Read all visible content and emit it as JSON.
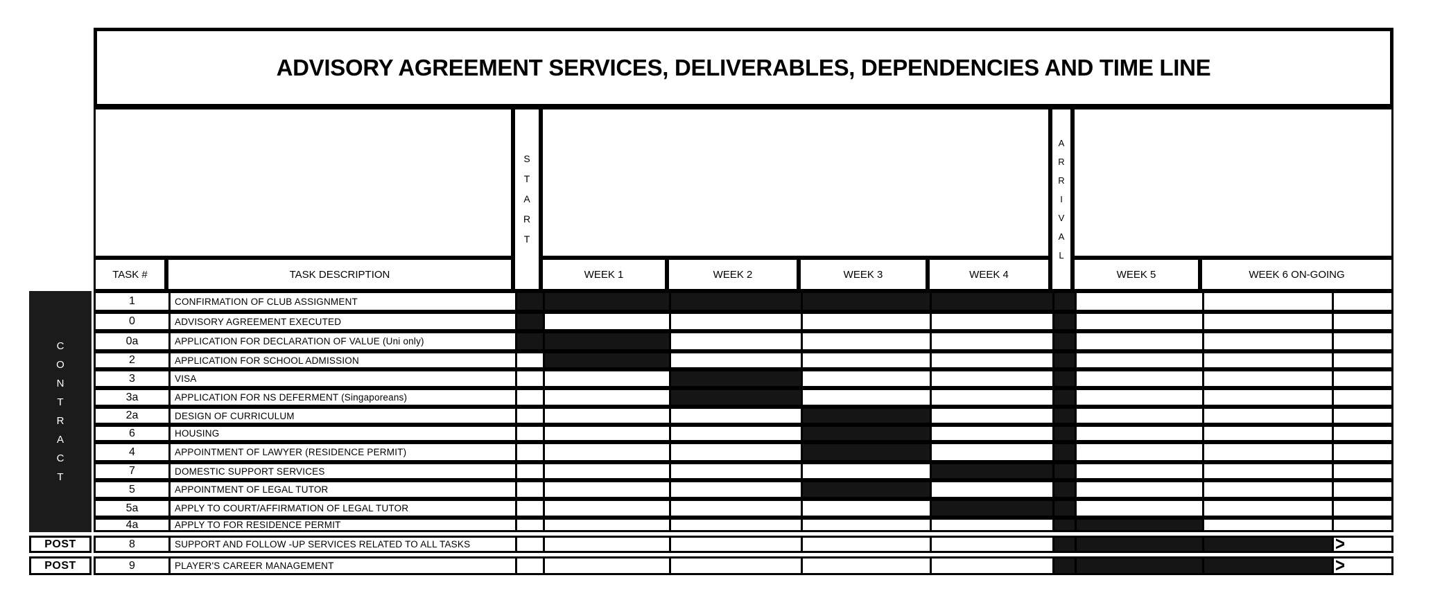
{
  "title": "ADVISORY AGREEMENT SERVICES, DELIVERABLES, DEPENDENCIES AND TIME LINE",
  "header": {
    "task_num": "TASK #",
    "task_desc": "TASK DESCRIPTION",
    "start": "START",
    "arrival": "ARRIVAL",
    "week1": "WEEK 1",
    "week2": "WEEK 2",
    "week3": "WEEK 3",
    "week4": "WEEK 4",
    "week5": "WEEK 5",
    "week6": "WEEK 6 ON-GOING"
  },
  "sidebar": {
    "contract_label": "CONTRACT",
    "post_label": "POST"
  },
  "arrow_symbol": ">",
  "colors": {
    "bar_fill": "#151515",
    "sidebar_fill": "#1b1b1b",
    "border": "#000000",
    "background": "#ffffff"
  },
  "chart_data": {
    "type": "table",
    "subtype": "gantt-timeline",
    "title": "ADVISORY AGREEMENT SERVICES, DELIVERABLES, DEPENDENCIES AND TIME LINE",
    "timeline_columns": [
      "START",
      "WEEK 1",
      "WEEK 2",
      "WEEK 3",
      "WEEK 4",
      "ARRIVAL",
      "WEEK 5",
      "WEEK 6 ON-GOING"
    ],
    "notes": "ARRIVAL column is filled black for every task row; '>' marks tasks continuing beyond week 6",
    "rows": [
      {
        "group": "CONTRACT",
        "task": "1",
        "description": "CONFIRMATION OF CLUB ASSIGNMENT",
        "filled": [
          "START",
          "WEEK 1",
          "WEEK 2",
          "WEEK 3",
          "WEEK 4",
          "ARRIVAL"
        ],
        "continues": false
      },
      {
        "group": "CONTRACT",
        "task": "0",
        "description": "ADVISORY AGREEMENT EXECUTED",
        "filled": [
          "START",
          "ARRIVAL"
        ],
        "continues": false
      },
      {
        "group": "CONTRACT",
        "task": "0a",
        "description": "APPLICATION FOR DECLARATION OF VALUE (Uni only)",
        "filled": [
          "START",
          "WEEK 1",
          "ARRIVAL"
        ],
        "continues": false
      },
      {
        "group": "CONTRACT",
        "task": "2",
        "description": "APPLICATION FOR SCHOOL ADMISSION",
        "filled": [
          "WEEK 1",
          "ARRIVAL"
        ],
        "continues": false
      },
      {
        "group": "CONTRACT",
        "task": "3",
        "description": "VISA",
        "filled": [
          "WEEK 2",
          "ARRIVAL"
        ],
        "continues": false
      },
      {
        "group": "CONTRACT",
        "task": "3a",
        "description": "APPLICATION FOR NS DEFERMENT (Singaporeans)",
        "filled": [
          "WEEK 2",
          "ARRIVAL"
        ],
        "continues": false
      },
      {
        "group": "CONTRACT",
        "task": "2a",
        "description": "DESIGN OF CURRICULUM",
        "filled": [
          "WEEK 3",
          "ARRIVAL"
        ],
        "continues": false
      },
      {
        "group": "CONTRACT",
        "task": "6",
        "description": "HOUSING",
        "filled": [
          "WEEK 3",
          "ARRIVAL"
        ],
        "continues": false
      },
      {
        "group": "CONTRACT",
        "task": "4",
        "description": "APPOINTMENT OF LAWYER (RESIDENCE PERMIT)",
        "filled": [
          "WEEK 3",
          "ARRIVAL"
        ],
        "continues": false
      },
      {
        "group": "CONTRACT",
        "task": "7",
        "description": "DOMESTIC SUPPORT SERVICES",
        "filled": [
          "WEEK 4",
          "ARRIVAL"
        ],
        "continues": false
      },
      {
        "group": "CONTRACT",
        "task": "5",
        "description": "APPOINTMENT OF LEGAL TUTOR",
        "filled": [
          "WEEK 3",
          "ARRIVAL"
        ],
        "continues": false
      },
      {
        "group": "CONTRACT",
        "task": "5a",
        "description": "APPLY TO COURT/AFFIRMATION OF LEGAL TUTOR",
        "filled": [
          "WEEK 4",
          "ARRIVAL"
        ],
        "continues": false
      },
      {
        "group": "CONTRACT",
        "task": "4a",
        "description": "APPLY TO FOR RESIDENCE PERMIT",
        "filled": [
          "ARRIVAL",
          "WEEK 5"
        ],
        "continues": false
      },
      {
        "group": "POST",
        "task": "8",
        "description": "SUPPORT AND FOLLOW -UP SERVICES RELATED TO ALL TASKS",
        "filled": [
          "ARRIVAL",
          "WEEK 5",
          "WEEK 6 ON-GOING"
        ],
        "continues": true
      },
      {
        "group": "POST",
        "task": "9",
        "description": "PLAYER'S CAREER MANAGEMENT",
        "filled": [
          "ARRIVAL",
          "WEEK 5",
          "WEEK 6 ON-GOING"
        ],
        "continues": true
      }
    ]
  }
}
